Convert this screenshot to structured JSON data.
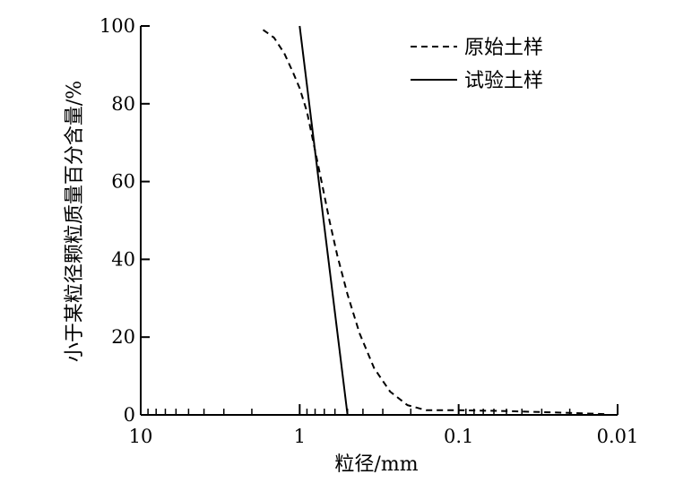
{
  "chart_data": {
    "type": "line",
    "xlabel": "粒径/mm",
    "ylabel": "小于某粒径颗粒质量百分含量/%",
    "x_scale": "log",
    "x_reversed": true,
    "xlim": [
      10,
      0.01
    ],
    "ylim": [
      0,
      100
    ],
    "x_ticks": [
      {
        "value": 10,
        "label": "10"
      },
      {
        "value": 1,
        "label": "1"
      },
      {
        "value": 0.1,
        "label": "0.1"
      },
      {
        "value": 0.01,
        "label": "0.01"
      }
    ],
    "y_ticks": [
      {
        "value": 0,
        "label": "0"
      },
      {
        "value": 20,
        "label": "20"
      },
      {
        "value": 40,
        "label": "40"
      },
      {
        "value": 60,
        "label": "60"
      },
      {
        "value": 80,
        "label": "80"
      },
      {
        "value": 100,
        "label": "100"
      }
    ],
    "grid": false,
    "legend_position": "top-right",
    "series": [
      {
        "name": "原始土样",
        "style": "dashed",
        "color": "#000000",
        "points": [
          {
            "x": 1.7,
            "y": 99
          },
          {
            "x": 1.45,
            "y": 97
          },
          {
            "x": 1.25,
            "y": 93
          },
          {
            "x": 1.1,
            "y": 88
          },
          {
            "x": 1.0,
            "y": 84
          },
          {
            "x": 0.9,
            "y": 78
          },
          {
            "x": 0.8,
            "y": 68
          },
          {
            "x": 0.72,
            "y": 59
          },
          {
            "x": 0.65,
            "y": 50
          },
          {
            "x": 0.58,
            "y": 41
          },
          {
            "x": 0.5,
            "y": 31
          },
          {
            "x": 0.42,
            "y": 21
          },
          {
            "x": 0.34,
            "y": 12
          },
          {
            "x": 0.27,
            "y": 6
          },
          {
            "x": 0.21,
            "y": 2.5
          },
          {
            "x": 0.16,
            "y": 1.2
          },
          {
            "x": 0.1,
            "y": 1.2
          },
          {
            "x": 0.05,
            "y": 1.0
          },
          {
            "x": 0.02,
            "y": 0.5
          },
          {
            "x": 0.012,
            "y": 0.2
          }
        ]
      },
      {
        "name": "试验土样",
        "style": "solid",
        "color": "#000000",
        "points": [
          {
            "x": 1.0,
            "y": 100
          },
          {
            "x": 0.5,
            "y": 0
          }
        ]
      }
    ]
  }
}
